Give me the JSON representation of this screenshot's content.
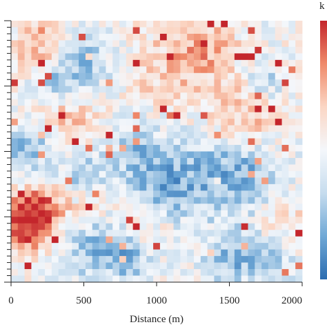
{
  "chart_data": {
    "type": "heatmap",
    "title": "",
    "xlabel": "Distance (m)",
    "ylabel": "",
    "xlim": [
      0,
      2000
    ],
    "x_ticks": [
      "0",
      "500",
      "1000",
      "1500",
      "2000"
    ],
    "grid_cols": 43,
    "grid_rows": 40,
    "colorscale": [
      "#2b6cb0",
      "#6fa8d6",
      "#c6dcee",
      "#f4f7fb",
      "#fbd6c4",
      "#ef8a6a",
      "#c4262c"
    ],
    "colorbar_title": "k",
    "note_values": "values are normalized levels in [-1, 1]; negative = blue, positive = red",
    "regions": [
      {
        "cx": 4,
        "cy": 3,
        "r": 4.0,
        "v": 0.55
      },
      {
        "cx": 22,
        "cy": 7,
        "r": 7.0,
        "v": 0.25
      },
      {
        "cx": 28,
        "cy": 4,
        "r": 5.0,
        "v": 0.45
      },
      {
        "cx": 34,
        "cy": 14,
        "r": 5.0,
        "v": 0.45
      },
      {
        "cx": 8,
        "cy": 14,
        "r": 5.0,
        "v": 0.35
      },
      {
        "cx": 2,
        "cy": 31,
        "r": 4.5,
        "v": 0.8
      },
      {
        "cx": 4,
        "cy": 28,
        "r": 4.0,
        "v": 0.55
      },
      {
        "cx": 12,
        "cy": 27,
        "r": 4.0,
        "v": 0.3
      },
      {
        "cx": 20,
        "cy": 31,
        "r": 3.5,
        "v": 0.3
      },
      {
        "cx": 40,
        "cy": 30,
        "r": 4.0,
        "v": 0.25
      },
      {
        "cx": 10,
        "cy": 6,
        "r": 4.5,
        "v": -0.55
      },
      {
        "cx": 6,
        "cy": 9,
        "r": 3.0,
        "v": -0.35
      },
      {
        "cx": 2,
        "cy": 19,
        "r": 4.0,
        "v": -0.55
      },
      {
        "cx": 10,
        "cy": 23,
        "r": 3.5,
        "v": -0.5
      },
      {
        "cx": 22,
        "cy": 24,
        "r": 6.5,
        "v": -0.65
      },
      {
        "cx": 33,
        "cy": 23,
        "r": 6.0,
        "v": -0.6
      },
      {
        "cx": 11,
        "cy": 34,
        "r": 5.0,
        "v": -0.5
      },
      {
        "cx": 17,
        "cy": 36,
        "r": 3.5,
        "v": -0.45
      },
      {
        "cx": 32,
        "cy": 36,
        "r": 4.0,
        "v": -0.55
      },
      {
        "cx": 38,
        "cy": 36,
        "r": 3.5,
        "v": -0.4
      },
      {
        "cx": 37,
        "cy": 9,
        "r": 3.0,
        "v": -0.4
      },
      {
        "cx": 17,
        "cy": 18,
        "r": 3.5,
        "v": -0.3
      }
    ]
  }
}
